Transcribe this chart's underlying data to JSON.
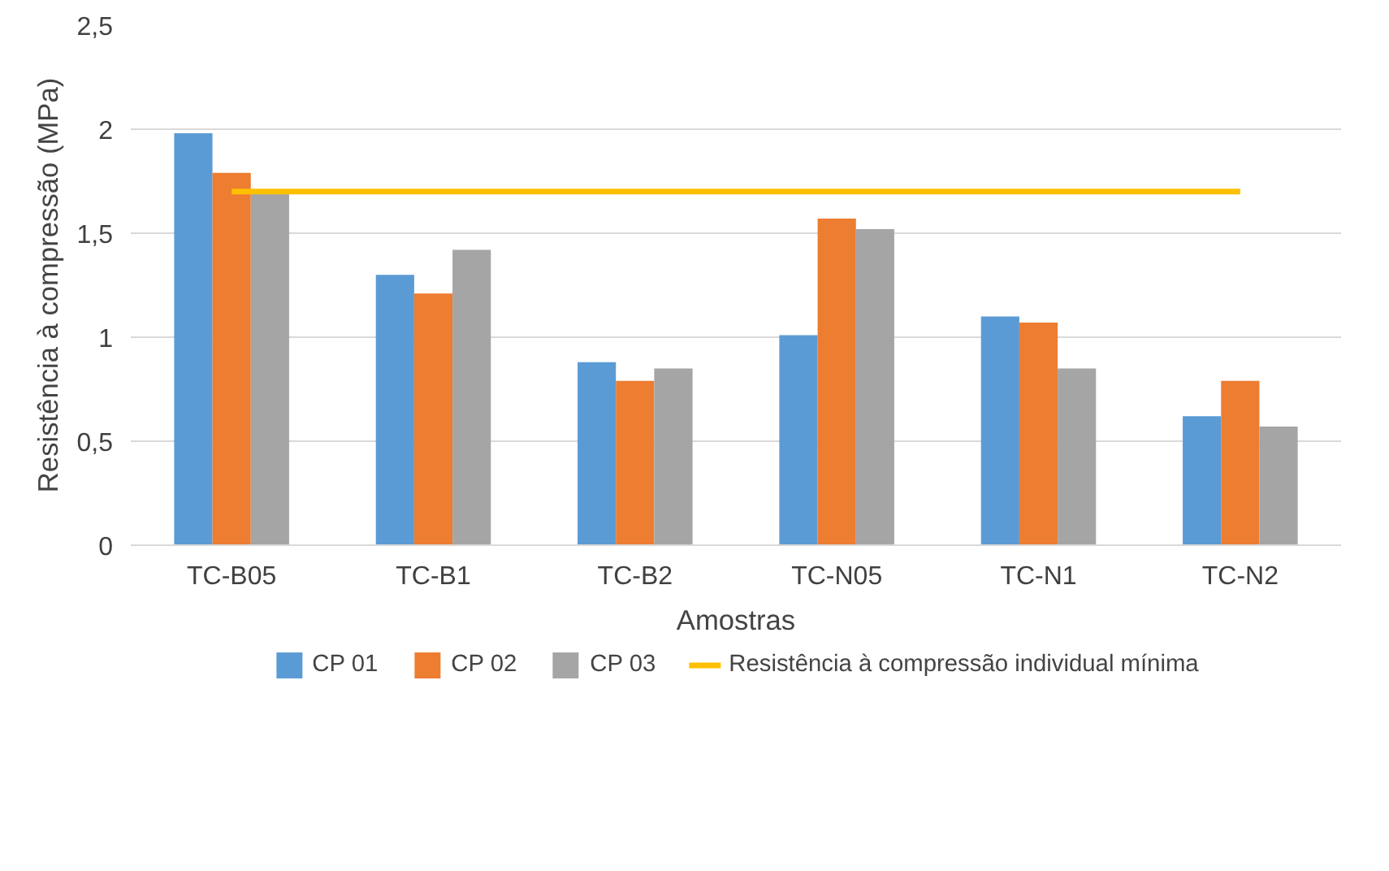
{
  "chart_data": {
    "type": "bar",
    "xlabel": "Amostras",
    "ylabel": "Resistência à compressão (MPa)",
    "categories": [
      "TC-B05",
      "TC-B1",
      "TC-B2",
      "TC-N05",
      "TC-N1",
      "TC-N2"
    ],
    "series": [
      {
        "name": "CP 01",
        "color": "#5b9bd5",
        "values": [
          1.98,
          1.3,
          0.88,
          1.01,
          1.1,
          0.62
        ]
      },
      {
        "name": "CP 02",
        "color": "#ed7d31",
        "values": [
          1.79,
          1.21,
          0.79,
          1.57,
          1.07,
          0.79
        ]
      },
      {
        "name": "CP 03",
        "color": "#a5a5a5",
        "values": [
          1.69,
          1.42,
          0.85,
          1.52,
          0.85,
          0.57
        ]
      },
      {
        "name": "Resistência à compressão individual mínima",
        "color": "#ffc000",
        "type": "line",
        "values": [
          1.7,
          1.7,
          1.7,
          1.7,
          1.7,
          1.7
        ]
      }
    ],
    "ylim": [
      0,
      2.5
    ],
    "yticks": [
      0,
      {
        "value": 0.5,
        "label": "0,5"
      },
      1,
      {
        "value": 1.5,
        "label": "1,5"
      },
      2,
      {
        "value": 2.5,
        "label": "2,5"
      }
    ],
    "grid": "y",
    "legend": "bottom"
  }
}
